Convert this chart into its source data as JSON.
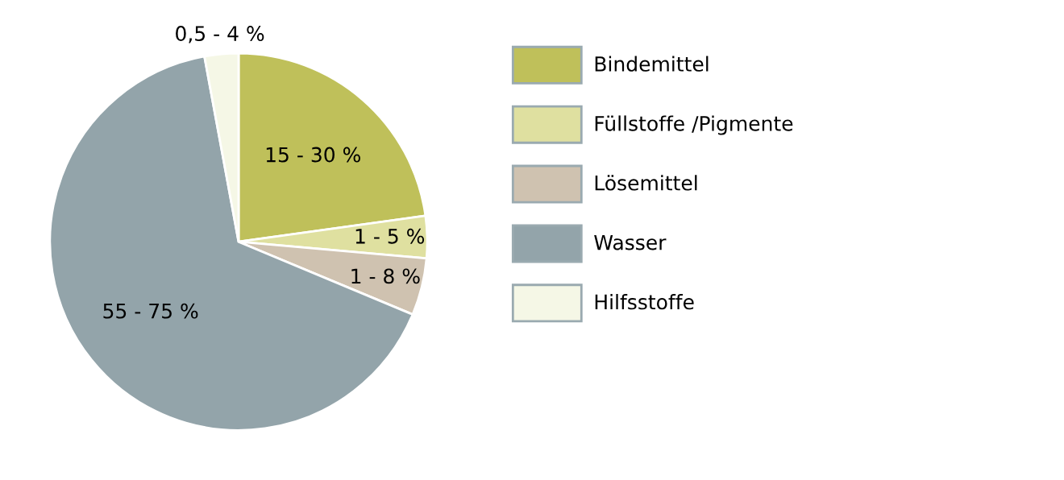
{
  "chart_data": {
    "type": "pie",
    "categories": [
      "Bindemittel",
      "Füllstoffe /Pigmente",
      "Lösemittel",
      "Wasser",
      "Hilfsstoffe"
    ],
    "values": [
      22.8,
      3.6,
      4.9,
      65.8,
      2.9
    ],
    "colors": [
      "#bfc05a",
      "#dfe0a0",
      "#cfc2b0",
      "#93a4aa",
      "#f5f7e6"
    ],
    "annotations": [
      {
        "text": "15 - 30 %",
        "x": "Bindemittel"
      },
      {
        "text": "1 - 5 %",
        "x": "Füllstoffe /Pigmente"
      },
      {
        "text": "1 - 8 %",
        "x": "Lösemittel"
      },
      {
        "text": "55 - 75 %",
        "x": "Wasser"
      },
      {
        "text": "0,5 - 4 %",
        "x": "Hilfsstoffe"
      }
    ],
    "legend": "right"
  }
}
